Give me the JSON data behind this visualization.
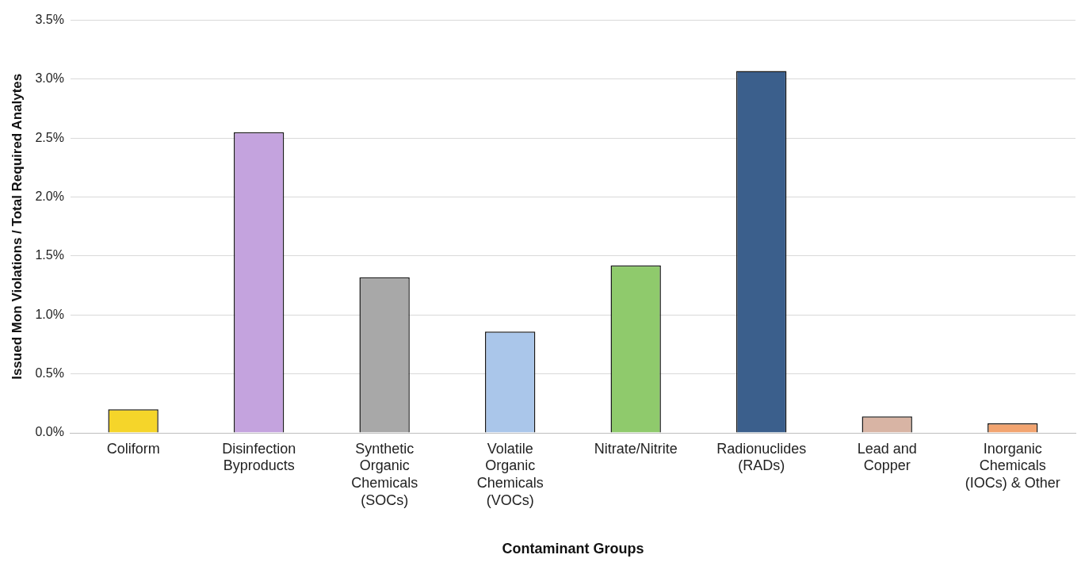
{
  "chart_data": {
    "type": "bar",
    "xlabel": "Contaminant Groups",
    "ylabel": "Issued Mon Violations / Total Required Analytes",
    "categories": [
      "Coliform",
      "Disinfection Byproducts",
      "Synthetic Organic Chemicals (SOCs)",
      "Volatile Organic Chemicals (VOCs)",
      "Nitrate/Nitrite",
      "Radionuclides (RADs)",
      "Lead and Copper",
      "Inorganic Chemicals (IOCs) & Other"
    ],
    "values": [
      0.2,
      2.55,
      1.32,
      0.86,
      1.42,
      3.07,
      0.14,
      0.08
    ],
    "colors": [
      "#f5d52a",
      "#c4a3de",
      "#a8a8a8",
      "#aac6ea",
      "#8fca6c",
      "#3b5f8c",
      "#d8b4a4",
      "#f2a470"
    ],
    "ylim": [
      0,
      3.5
    ],
    "yticks": [
      {
        "value": 0,
        "label": "0.0%"
      },
      {
        "value": 0.5,
        "label": "0.5%"
      },
      {
        "value": 1,
        "label": "1.0%"
      },
      {
        "value": 1.5,
        "label": "1.5%"
      },
      {
        "value": 2,
        "label": "2.0%"
      },
      {
        "value": 2.5,
        "label": "2.5%"
      },
      {
        "value": 3,
        "label": "3.0%"
      },
      {
        "value": 3.5,
        "label": "3.5%"
      }
    ],
    "grid": "y",
    "legend": false
  }
}
